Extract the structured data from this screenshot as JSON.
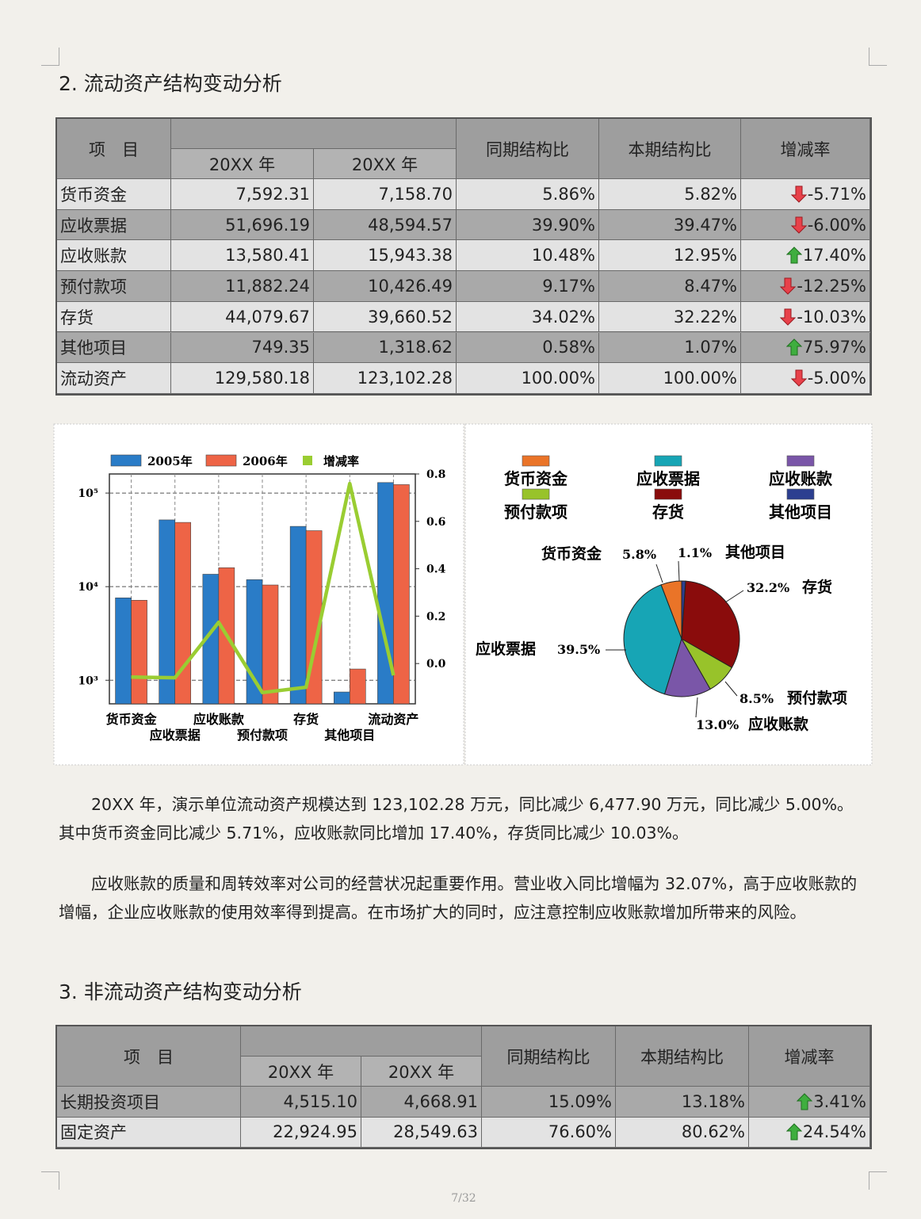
{
  "section2_title": "2. 流动资产结构变动分析",
  "table1": {
    "header": {
      "item": "项　目",
      "years": [
        "20XX 年",
        "20XX 年"
      ],
      "prior_ratio": "同期结构比",
      "current_ratio": "本期结构比",
      "change": "增减率"
    },
    "rows": [
      [
        "货币资金",
        "7,592.31",
        "7,158.70",
        "5.86%",
        "5.82%",
        "-5.71%"
      ],
      [
        "应收票据",
        "51,696.19",
        "48,594.57",
        "39.90%",
        "39.47%",
        "-6.00%"
      ],
      [
        "应收账款",
        "13,580.41",
        "15,943.38",
        "10.48%",
        "12.95%",
        "17.40%"
      ],
      [
        "预付款项",
        "11,882.24",
        "10,426.49",
        "9.17%",
        "8.47%",
        "-12.25%"
      ],
      [
        "存货",
        "44,079.67",
        "39,660.52",
        "34.02%",
        "32.22%",
        "-10.03%"
      ],
      [
        "其他项目",
        "749.35",
        "1,318.62",
        "0.58%",
        "1.07%",
        "75.97%"
      ],
      [
        "流动资产",
        "129,580.18",
        "123,102.28",
        "100.00%",
        "100.00%",
        "-5.00%"
      ]
    ]
  },
  "bar_chart": {
    "type": "bar",
    "log_y": true,
    "categories": [
      "货币资金",
      "应收票据",
      "应收账款",
      "预付款项",
      "存货",
      "其他项目",
      "流动资产"
    ],
    "series": [
      {
        "name": "2005年",
        "color": "#2a7cc7",
        "values": [
          7592.31,
          51696.19,
          13580.41,
          11882.24,
          44079.67,
          749.35,
          129580.18
        ]
      },
      {
        "name": "2006年",
        "color": "#ee6446",
        "values": [
          7158.7,
          48594.57,
          15943.38,
          10426.49,
          39660.52,
          1318.62,
          123102.28
        ]
      },
      {
        "name": "增减率",
        "color": "#9acd32",
        "type": "line",
        "axis": "y2",
        "values": [
          -0.0571,
          -0.06,
          0.174,
          -0.1225,
          -0.1003,
          0.7597,
          -0.05
        ]
      }
    ],
    "ylim": [
      560,
      160000
    ],
    "yticks": [
      {
        "value": 1000,
        "label": "10³"
      },
      {
        "value": 10000,
        "label": "10⁴"
      },
      {
        "value": 100000,
        "label": "10⁵"
      }
    ],
    "y2lim": [
      -0.17,
      0.8
    ],
    "y2ticks": [
      0.8,
      0.6,
      0.4,
      0.2,
      {
        "value": 0,
        "label": "0.0"
      }
    ],
    "grid": true
  },
  "pie_chart": {
    "type": "pie",
    "categories": [
      "货币资金",
      "应收票据",
      "应收账款",
      "预付款项",
      "存货",
      "其他项目"
    ],
    "colors": [
      "#ea7428",
      "#17a5b5",
      "#7a56a8",
      "#98c32a",
      "#8a0c0c",
      "#2c3f90"
    ],
    "values": [
      5.8,
      39.5,
      13.0,
      8.5,
      32.2,
      1.1
    ],
    "value_labels": [
      "5.8%",
      "39.5%",
      "13.0%",
      "8.5%",
      "32.2%",
      "1.1%"
    ]
  },
  "paragraphs": [
    "20XX 年，演示单位流动资产规模达到 123,102.28 万元，同比减少 6,477.90 万元，同比减少 5.00%。其中货币资金同比减少 5.71%，应收账款同比增加 17.40%，存货同比减少 10.03%。",
    "应收账款的质量和周转效率对公司的经营状况起重要作用。营业收入同比增幅为 32.07%，高于应收账款的增幅，企业应收账款的使用效率得到提高。在市场扩大的同时，应注意控制应收账款增加所带来的风险。"
  ],
  "section3_title": "3. 非流动资产结构变动分析",
  "table2": {
    "header": {
      "item": "项　目",
      "years": [
        "20XX 年",
        "20XX 年"
      ],
      "prior_ratio": "同期结构比",
      "current_ratio": "本期结构比",
      "change": "增减率"
    },
    "rows": [
      [
        "长期投资项目",
        "4,515.10",
        "4,668.91",
        "15.09%",
        "13.18%",
        "3.41%"
      ],
      [
        "固定资产",
        "22,924.95",
        "28,549.63",
        "76.60%",
        "80.62%",
        "24.54%"
      ]
    ]
  },
  "page_number": "7/32"
}
